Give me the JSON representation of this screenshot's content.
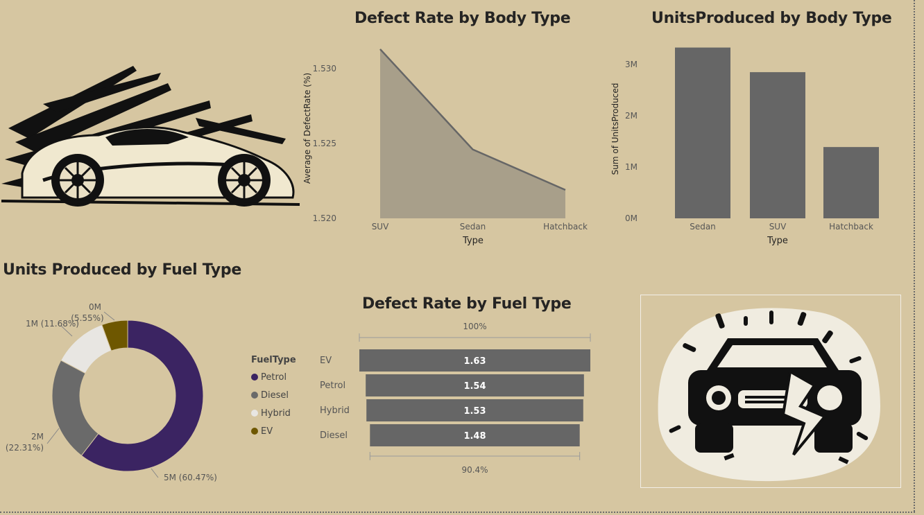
{
  "titles": {
    "defect_body": "Defect Rate by Body Type",
    "units_body": "UnitsProduced by Body Type",
    "units_fuel": "Units Produced by Fuel Type",
    "defect_fuel": "Defect Rate by Fuel Type"
  },
  "colors": {
    "background": "#d6c6a1",
    "bar": "#666666",
    "area_fill": "#a89f8a",
    "petrol": "#3b2462",
    "diesel": "#6a6a6a",
    "hybrid": "#e8e6e2",
    "ev": "#6e5700"
  },
  "chart_data": [
    {
      "type": "area",
      "title": "Defect Rate by Body Type",
      "categories": [
        "SUV",
        "Sedan",
        "Hatchback"
      ],
      "values": [
        1.5313,
        1.5246,
        1.5219
      ],
      "xlabel": "Type",
      "ylabel": "Average of DefectRate (%)",
      "yticks": [
        "1.520",
        "1.525",
        "1.530"
      ],
      "ylim": [
        1.52,
        1.5313
      ],
      "grid": false
    },
    {
      "type": "bar",
      "title": "UnitsProduced by Body Type",
      "categories": [
        "Sedan",
        "SUV",
        "Hatchback"
      ],
      "values": [
        3.33,
        2.85,
        1.39
      ],
      "units": "M",
      "xlabel": "Type",
      "ylabel": "Sum of UnitsProduced",
      "yticks": [
        "0M",
        "1M",
        "2M",
        "3M"
      ],
      "ylim": [
        0,
        3.4
      ],
      "grid": false
    },
    {
      "type": "pie",
      "title": "Units Produced by Fuel Type",
      "legend_title": "FuelType",
      "legend_position": "right",
      "series": [
        {
          "name": "Petrol",
          "label": "5M (60.47%)",
          "percent": 60.47
        },
        {
          "name": "Diesel",
          "label": "2M (22.31%)",
          "percent": 22.31
        },
        {
          "name": "Hybrid",
          "label": "1M (11.68%)",
          "percent": 11.68
        },
        {
          "name": "EV",
          "label": "0M (5.55%)",
          "percent": 5.55
        }
      ]
    },
    {
      "type": "bar",
      "subtype": "funnel",
      "title": "Defect Rate by Fuel Type",
      "categories": [
        "EV",
        "Petrol",
        "Hybrid",
        "Diesel"
      ],
      "values": [
        1.63,
        1.54,
        1.53,
        1.48
      ],
      "value_labels": [
        "1.63",
        "1.54",
        "1.53",
        "1.48"
      ],
      "top_label": "100%",
      "bottom_label": "90.4%"
    }
  ]
}
